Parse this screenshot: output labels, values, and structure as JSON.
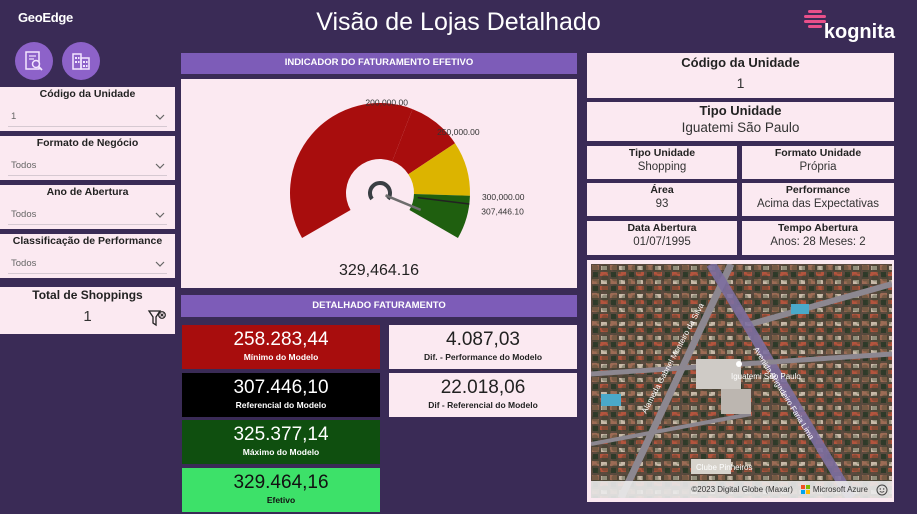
{
  "header": {
    "logo_geoedge": "GeoEdge",
    "title": "Visão de Lojas Detalhado",
    "logo_kognita": "kognita"
  },
  "filters": {
    "codigo": {
      "label": "Código da Unidade",
      "value": "1"
    },
    "formato": {
      "label": "Formato de Negócio",
      "value": "Todos"
    },
    "ano": {
      "label": "Ano de Abertura",
      "value": "Todos"
    },
    "classificacao": {
      "label": "Classificação de Performance",
      "value": "Todos"
    }
  },
  "total_shoppings": {
    "label": "Total de Shoppings",
    "value": "1"
  },
  "gauge": {
    "title": "INDICADOR DO FATURAMENTO EFETIVO",
    "value_label": "329,464.16",
    "value": 329464.16,
    "min": 0,
    "max": 340000,
    "bands": [
      {
        "from": 0,
        "to": 200000,
        "color": "#a80d0d"
      },
      {
        "from": 200000,
        "to": 250000,
        "color": "#a80d0d"
      },
      {
        "from": 250000,
        "to": 300000,
        "color": "#dcb400"
      },
      {
        "from": 300000,
        "to": 340000,
        "color": "#1f5f0f"
      }
    ],
    "marks": [
      {
        "value": 200000,
        "label": "200,000.00"
      },
      {
        "value": 250000,
        "label": "250,000.00"
      },
      {
        "value": 300000,
        "label": "300,000.00"
      },
      {
        "value": 307446.1,
        "label": "307,446.10"
      }
    ]
  },
  "detalhado": {
    "title": "DETALHADO FATURAMENTO",
    "minimo": {
      "value": "258.283,44",
      "caption": "Mínimo do Modelo",
      "color": "#a80d0d"
    },
    "referencial": {
      "value": "307.446,10",
      "caption": "Referencial do Modelo",
      "color": "#000000"
    },
    "maximo": {
      "value": "325.377,14",
      "caption": "Máximo do Modelo",
      "color": "#0f4f0f"
    },
    "efetivo": {
      "value": "329.464,16",
      "caption": "Efetivo",
      "color": "#3de169"
    },
    "dif_performance": {
      "value": "4.087,03",
      "caption": "Dif. - Performance do Modelo"
    },
    "dif_referencial": {
      "value": "22.018,06",
      "caption": "Dif - Referencial do Modelo"
    }
  },
  "unidade": {
    "codigo": {
      "title": "Código da Unidade",
      "value": "1"
    },
    "tipo_big": {
      "title": "Tipo Unidade",
      "value": "Iguatemi São Paulo"
    },
    "tipo": {
      "title": "Tipo Unidade",
      "value": "Shopping"
    },
    "formato": {
      "title": "Formato Unidade",
      "value": "Própria"
    },
    "area": {
      "title": "Área",
      "value": "93"
    },
    "performance": {
      "title": "Performance",
      "value": "Acima das Expectativas"
    },
    "data_abertura": {
      "title": "Data Abertura",
      "value": "01/07/1995"
    },
    "tempo_abertura": {
      "title": "Tempo Abertura",
      "value": "Anos: 28 Meses: 2"
    }
  },
  "map": {
    "streets": [
      "Alameda Gabriel Monteiro da Silva",
      "Avenida Brigadeiro Faria Lima",
      "Iguatemi São Paulo",
      "Clube Pinheiros"
    ],
    "attribution": "©2023 Digital Globe (Maxar)",
    "provider": "Microsoft Azure"
  },
  "colors": {
    "background": "#3a2b56",
    "card": "#fbe9f1",
    "accent": "#7d5cb8"
  }
}
